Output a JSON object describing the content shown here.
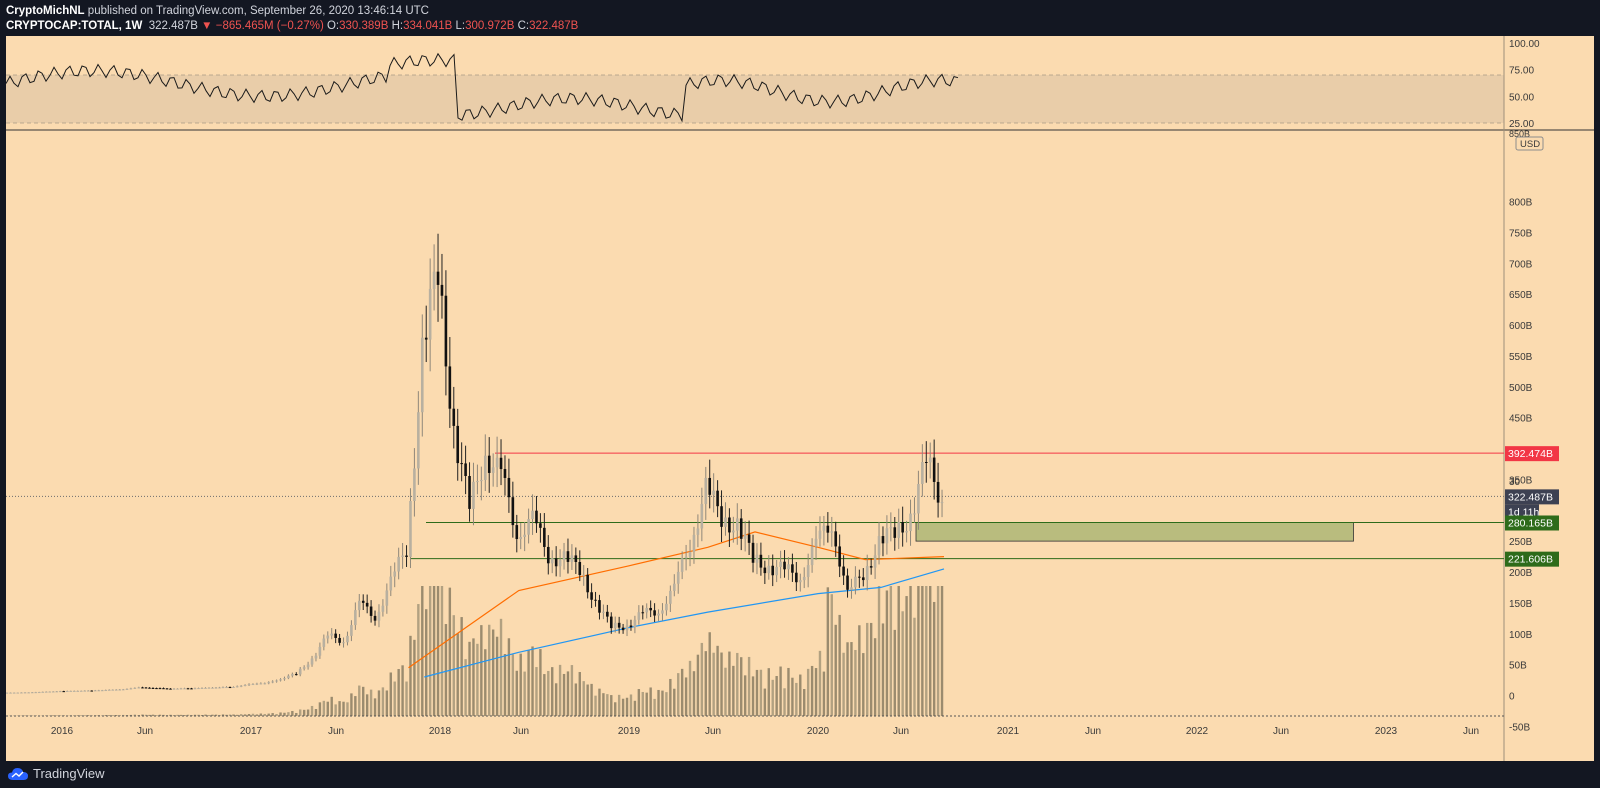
{
  "header": {
    "author": "CryptoMichNL",
    "published_text": "published on TradingView.com, September 26, 2020 13:46:14 UTC",
    "symbol": "CRYPTOCAP:TOTAL, 1W",
    "price": "322.487B",
    "change": "▼ −865.465M (−0.27%)",
    "open_label": "O:",
    "open": "330.389B",
    "high_label": "H:",
    "high": "334.041B",
    "low_label": "L:",
    "low": "300.972B",
    "close_label": "C:",
    "close": "322.487B"
  },
  "footer": {
    "brand": "TradingView"
  },
  "colors": {
    "background": "#fbdbb0",
    "rsi_band": "#e9cda9",
    "candle_up": "#b8b0a0",
    "candle_down": "#111111",
    "resistance": "#f23645",
    "support": "#2e6b1a",
    "zone": "#b9bc7e",
    "ma_orange": "#ff6d00",
    "ma_blue": "#2196f3",
    "volume": "#8a7d63"
  },
  "price_scale": {
    "currency": "USD",
    "labels": [
      "800B",
      "750B",
      "700B",
      "650B",
      "600B",
      "550B",
      "500B",
      "450B",
      "350B",
      "300B",
      "250B",
      "200B",
      "150B",
      "100B",
      "50B",
      "0",
      "-50B"
    ],
    "levels": [
      {
        "text": "392.474B",
        "kind": "resistance",
        "value": 392.474
      },
      {
        "text": "322.487B",
        "kind": "current",
        "value": 322.487
      },
      {
        "text": "1d 11h",
        "kind": "countdown",
        "value": 305
      },
      {
        "text": "280.165B",
        "kind": "support",
        "value": 280.165
      },
      {
        "text": "221.606B",
        "kind": "support",
        "value": 221.606
      }
    ],
    "partial_top_label": "850B",
    "partial_mid_label": "30"
  },
  "rsi_scale": {
    "labels": [
      "100.00",
      "75.00",
      "50.00",
      "25.00"
    ]
  },
  "time_axis": {
    "labels": [
      "2016",
      "Jun",
      "2017",
      "Jun",
      "2018",
      "Jun",
      "2019",
      "Jun",
      "2020",
      "Jun",
      "2021",
      "Jun",
      "2022",
      "Jun",
      "2023",
      "Jun"
    ]
  },
  "chart_data": {
    "type": "candlestick",
    "title": "CRYPTOCAP:TOTAL, 1W",
    "y_unit": "USD (billions)",
    "ylim": [
      -60,
      860
    ],
    "x_range": [
      "2015-08",
      "2023-09"
    ],
    "series": [
      {
        "name": "TOTAL market cap (approx. weekly closes, B)",
        "points": [
          [
            "2015-08",
            4
          ],
          [
            "2015-11",
            5
          ],
          [
            "2016-01",
            7
          ],
          [
            "2016-03",
            8
          ],
          [
            "2016-05",
            10
          ],
          [
            "2016-06",
            13
          ],
          [
            "2016-08",
            11
          ],
          [
            "2016-10",
            12
          ],
          [
            "2016-12",
            14
          ],
          [
            "2017-01",
            18
          ],
          [
            "2017-02",
            20
          ],
          [
            "2017-03",
            26
          ],
          [
            "2017-04",
            35
          ],
          [
            "2017-05",
            60
          ],
          [
            "2017-06",
            95
          ],
          [
            "2017-07",
            90
          ],
          [
            "2017-08",
            145
          ],
          [
            "2017-09",
            130
          ],
          [
            "2017-10",
            180
          ],
          [
            "2017-11",
            240
          ],
          [
            "2017-12",
            550
          ],
          [
            "2018-01",
            690
          ],
          [
            "2018-02",
            430
          ],
          [
            "2018-03",
            300
          ],
          [
            "2018-04",
            400
          ],
          [
            "2018-05",
            350
          ],
          [
            "2018-06",
            270
          ],
          [
            "2018-07",
            280
          ],
          [
            "2018-08",
            230
          ],
          [
            "2018-09",
            220
          ],
          [
            "2018-10",
            205
          ],
          [
            "2018-11",
            150
          ],
          [
            "2018-12",
            110
          ],
          [
            "2019-01",
            115
          ],
          [
            "2019-02",
            130
          ],
          [
            "2019-03",
            140
          ],
          [
            "2019-04",
            170
          ],
          [
            "2019-05",
            250
          ],
          [
            "2019-06",
            330
          ],
          [
            "2019-07",
            290
          ],
          [
            "2019-08",
            275
          ],
          [
            "2019-09",
            220
          ],
          [
            "2019-10",
            210
          ],
          [
            "2019-11",
            200
          ],
          [
            "2019-12",
            195
          ],
          [
            "2020-01",
            240
          ],
          [
            "2020-02",
            285
          ],
          [
            "2020-03",
            160
          ],
          [
            "2020-04",
            200
          ],
          [
            "2020-05",
            245
          ],
          [
            "2020-06",
            265
          ],
          [
            "2020-07",
            290
          ],
          [
            "2020-08",
            375
          ],
          [
            "2020-09",
            322.487
          ]
        ]
      },
      {
        "name": "Moving average (orange)",
        "points": [
          [
            "2017-11",
            45
          ],
          [
            "2018-06",
            170
          ],
          [
            "2019-01",
            210
          ],
          [
            "2019-06",
            240
          ],
          [
            "2019-09",
            265
          ],
          [
            "2020-01",
            240
          ],
          [
            "2020-04",
            220
          ],
          [
            "2020-09",
            225
          ]
        ]
      },
      {
        "name": "Moving average (blue)",
        "points": [
          [
            "2017-12",
            30
          ],
          [
            "2018-06",
            70
          ],
          [
            "2019-01",
            110
          ],
          [
            "2019-06",
            135
          ],
          [
            "2020-01",
            165
          ],
          [
            "2020-05",
            175
          ],
          [
            "2020-09",
            205
          ]
        ]
      },
      {
        "name": "RSI",
        "values_range": [
          25,
          100
        ],
        "levels": [
          30,
          70
        ]
      }
    ],
    "levels": {
      "resistance": 392.474,
      "support_top": 280.165,
      "support_bottom": 221.606
    },
    "zone": {
      "from_value": 250,
      "to_value": 280.165,
      "until": "2022-11"
    }
  }
}
